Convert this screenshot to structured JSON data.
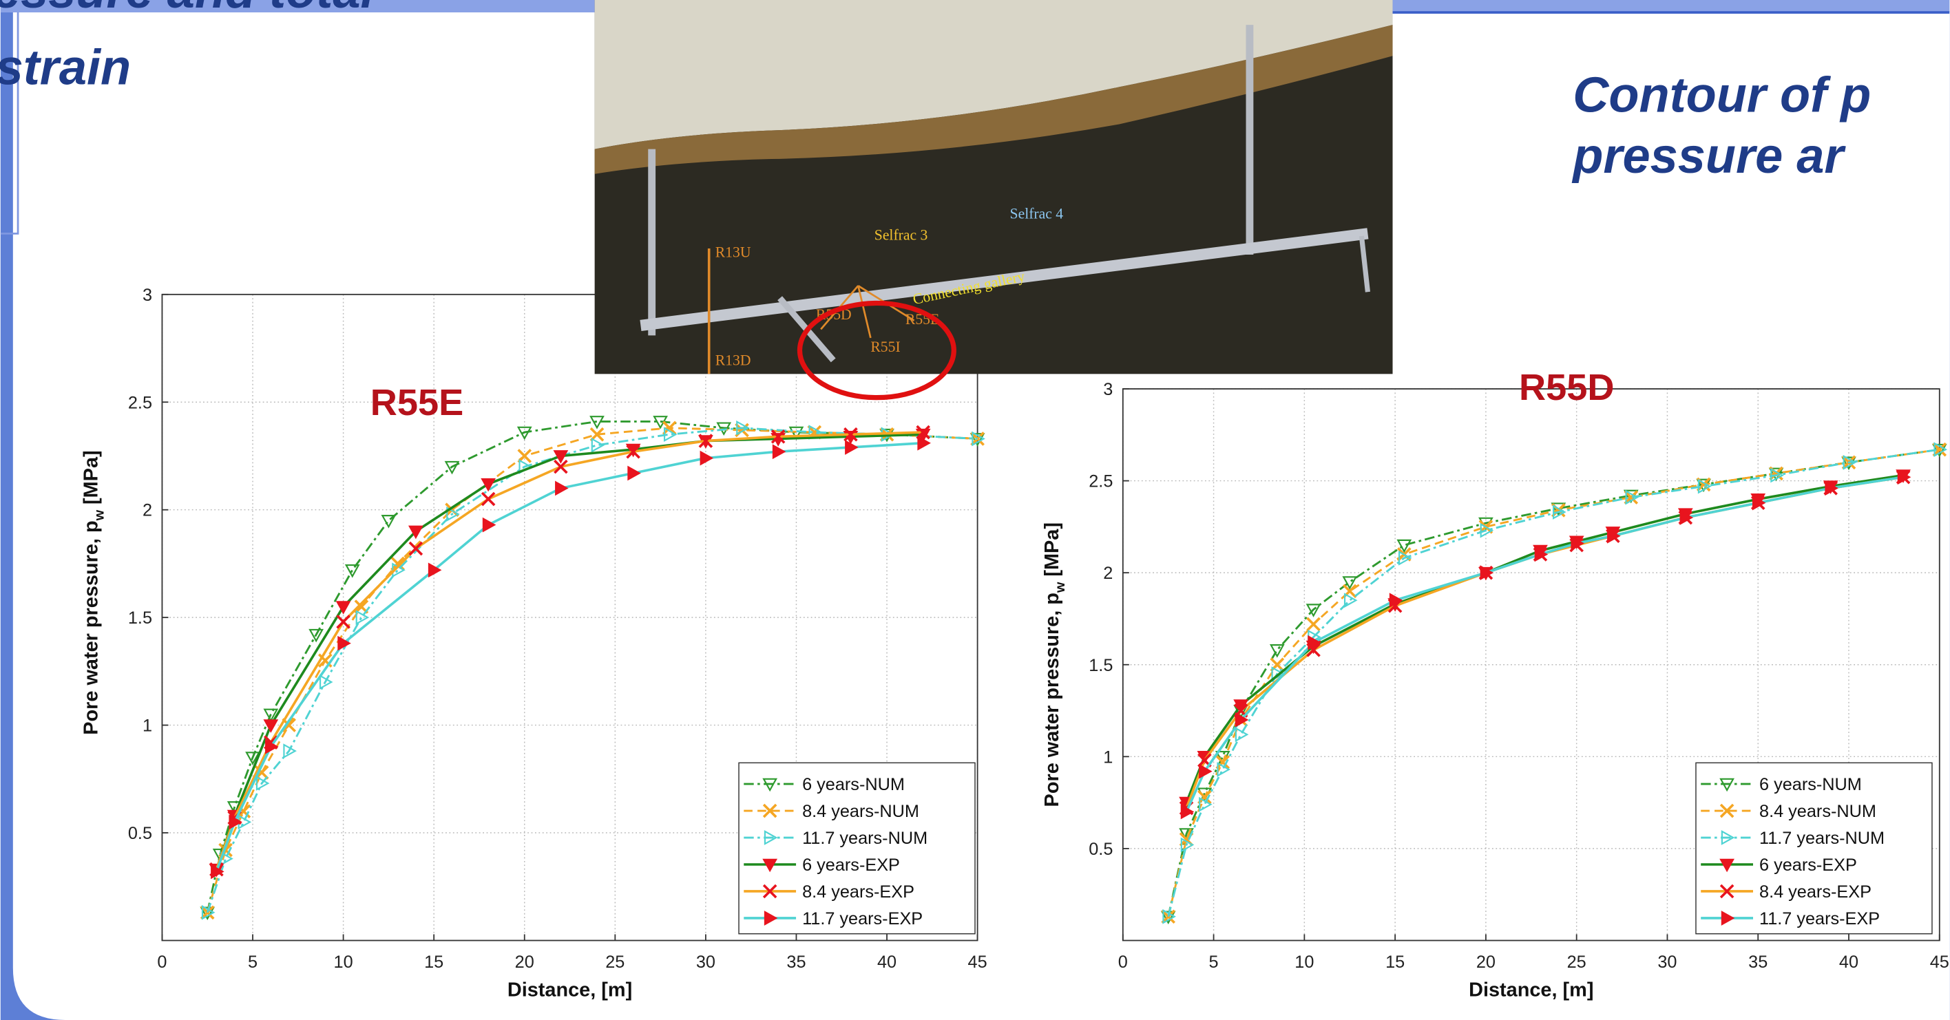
{
  "slide": {
    "left_title": [
      "essure and total",
      "strain"
    ],
    "right_title": [
      "Contour of p",
      "pressure ar"
    ]
  },
  "photo": {
    "labels": [
      "Selfrac 3",
      "Selfrac 4",
      "Connecting gallery",
      "R13U",
      "R13D",
      "R55D",
      "R55E",
      "R55I"
    ]
  },
  "chart_data": [
    {
      "type": "line",
      "title": "R55E",
      "xlabel": "Distance, [m]",
      "ylabel": [
        "Pore water pressure, p",
        "w",
        " [MPa]"
      ],
      "xlim": [
        0,
        45
      ],
      "ylim": [
        0,
        3
      ],
      "xticks": [
        0,
        5,
        10,
        15,
        20,
        25,
        30,
        35,
        40,
        45
      ],
      "yticks": [
        0.5,
        1,
        1.5,
        2,
        2.5,
        3
      ],
      "grid": true,
      "legend": "lower right",
      "series": [
        {
          "name": "6 years-NUM",
          "color": "#2e9a2e",
          "linestyle": "dashdot",
          "marker": "v",
          "marker_color": "#2e9a2e",
          "marker_filled": false,
          "x": [
            2.5,
            3.2,
            4,
            5,
            6,
            8.5,
            10.5,
            12.5,
            16,
            20,
            24,
            27.5,
            31,
            35,
            40,
            45
          ],
          "values": [
            0.13,
            0.4,
            0.62,
            0.85,
            1.05,
            1.42,
            1.72,
            1.95,
            2.2,
            2.36,
            2.41,
            2.41,
            2.38,
            2.36,
            2.35,
            2.33
          ]
        },
        {
          "name": "8.4 years-NUM",
          "color": "#f5a623",
          "linestyle": "dash",
          "marker": "x",
          "marker_color": "#f5a623",
          "marker_filled": false,
          "x": [
            2.5,
            3.5,
            4.5,
            5.5,
            7,
            9,
            11,
            13,
            16,
            20,
            24,
            28,
            32,
            36,
            40,
            45
          ],
          "values": [
            0.13,
            0.42,
            0.6,
            0.78,
            1.0,
            1.3,
            1.55,
            1.75,
            2.0,
            2.25,
            2.35,
            2.38,
            2.37,
            2.36,
            2.35,
            2.33
          ]
        },
        {
          "name": "11.7 years-NUM",
          "color": "#4fd3d3",
          "linestyle": "dashdot",
          "marker": ">",
          "marker_color": "#4fd3d3",
          "marker_filled": false,
          "x": [
            2.5,
            3.5,
            4.5,
            5.5,
            7,
            9,
            11,
            13,
            16,
            20,
            24,
            28,
            32,
            36,
            40,
            45
          ],
          "values": [
            0.13,
            0.38,
            0.55,
            0.73,
            0.88,
            1.2,
            1.5,
            1.72,
            1.98,
            2.2,
            2.3,
            2.35,
            2.38,
            2.36,
            2.35,
            2.33
          ]
        },
        {
          "name": "6 years-EXP",
          "color": "#1e8a1e",
          "linestyle": "solid",
          "marker": "v",
          "marker_color": "#e8141e",
          "marker_filled": true,
          "x": [
            3,
            4,
            6,
            10,
            14,
            18,
            22,
            26,
            30,
            34,
            38,
            42
          ],
          "values": [
            0.33,
            0.58,
            1.0,
            1.55,
            1.9,
            2.12,
            2.25,
            2.28,
            2.32,
            2.33,
            2.34,
            2.35
          ]
        },
        {
          "name": "8.4 years-EXP",
          "color": "#f5a623",
          "linestyle": "solid",
          "marker": "x",
          "marker_color": "#e8141e",
          "marker_filled": true,
          "x": [
            3,
            4,
            6,
            10,
            14,
            18,
            22,
            26,
            30,
            34,
            38,
            42
          ],
          "values": [
            0.33,
            0.57,
            0.92,
            1.48,
            1.82,
            2.05,
            2.2,
            2.27,
            2.32,
            2.34,
            2.35,
            2.36
          ]
        },
        {
          "name": "11.7 years-EXP",
          "color": "#4fd3d3",
          "linestyle": "solid",
          "marker": ">",
          "marker_color": "#e8141e",
          "marker_filled": true,
          "x": [
            3,
            4,
            6,
            10,
            15,
            18,
            22,
            26,
            30,
            34,
            38,
            42
          ],
          "values": [
            0.32,
            0.55,
            0.9,
            1.38,
            1.72,
            1.93,
            2.1,
            2.17,
            2.24,
            2.27,
            2.29,
            2.31
          ]
        }
      ]
    },
    {
      "type": "line",
      "title": "R55D",
      "xlabel": "Distance, [m]",
      "ylabel": [
        "Pore water pressure, p",
        "w",
        " [MPa]"
      ],
      "xlim": [
        0,
        45
      ],
      "ylim": [
        0,
        3
      ],
      "xticks": [
        0,
        5,
        10,
        15,
        20,
        25,
        30,
        35,
        40,
        45
      ],
      "yticks": [
        0.5,
        1,
        1.5,
        2,
        2.5,
        3
      ],
      "grid": true,
      "legend": "lower right",
      "series": [
        {
          "name": "6 years-NUM",
          "color": "#2e9a2e",
          "linestyle": "dashdot",
          "marker": "v",
          "marker_color": "#2e9a2e",
          "marker_filled": false,
          "x": [
            2.5,
            3.5,
            4.5,
            5.5,
            6.5,
            8.5,
            10.5,
            12.5,
            15.5,
            20,
            24,
            28,
            32,
            36,
            40,
            45
          ],
          "values": [
            0.13,
            0.58,
            0.8,
            1.0,
            1.25,
            1.58,
            1.8,
            1.95,
            2.15,
            2.27,
            2.35,
            2.42,
            2.48,
            2.54,
            2.6,
            2.67
          ]
        },
        {
          "name": "8.4 years-NUM",
          "color": "#f5a623",
          "linestyle": "dash",
          "marker": "x",
          "marker_color": "#f5a623",
          "marker_filled": false,
          "x": [
            2.5,
            3.5,
            4.5,
            5.5,
            6.5,
            8.5,
            10.5,
            12.5,
            15.5,
            20,
            24,
            28,
            32,
            36,
            40,
            45
          ],
          "values": [
            0.13,
            0.55,
            0.78,
            0.97,
            1.2,
            1.5,
            1.72,
            1.9,
            2.1,
            2.25,
            2.34,
            2.41,
            2.48,
            2.54,
            2.6,
            2.67
          ]
        },
        {
          "name": "11.7 years-NUM",
          "color": "#4fd3d3",
          "linestyle": "dashdot",
          "marker": ">",
          "marker_color": "#4fd3d3",
          "marker_filled": false,
          "x": [
            2.5,
            3.5,
            4.5,
            5.5,
            6.5,
            8.5,
            10.5,
            12.5,
            15.5,
            20,
            24,
            28,
            32,
            36,
            40,
            45
          ],
          "values": [
            0.13,
            0.52,
            0.74,
            0.93,
            1.12,
            1.45,
            1.65,
            1.85,
            2.08,
            2.23,
            2.33,
            2.41,
            2.47,
            2.53,
            2.6,
            2.67
          ]
        },
        {
          "name": "6 years-EXP",
          "color": "#1e8a1e",
          "linestyle": "solid",
          "marker": "v",
          "marker_color": "#e8141e",
          "marker_filled": true,
          "x": [
            3.5,
            4.5,
            6.5,
            10.5,
            15,
            20,
            23,
            25,
            27,
            31,
            35,
            39,
            43
          ],
          "values": [
            0.75,
            1.0,
            1.28,
            1.6,
            1.83,
            2.0,
            2.12,
            2.17,
            2.22,
            2.32,
            2.4,
            2.47,
            2.53
          ]
        },
        {
          "name": "8.4 years-EXP",
          "color": "#f5a623",
          "linestyle": "solid",
          "marker": "x",
          "marker_color": "#e8141e",
          "marker_filled": true,
          "x": [
            3.5,
            4.5,
            6.5,
            10.5,
            15,
            20,
            23,
            25,
            27,
            31,
            35,
            39,
            43
          ],
          "values": [
            0.72,
            0.98,
            1.25,
            1.58,
            1.82,
            2.0,
            2.1,
            2.15,
            2.2,
            2.3,
            2.38,
            2.46,
            2.52
          ]
        },
        {
          "name": "11.7 years-EXP",
          "color": "#4fd3d3",
          "linestyle": "solid",
          "marker": ">",
          "marker_color": "#e8141e",
          "marker_filled": true,
          "x": [
            3.5,
            4.5,
            6.5,
            10.5,
            15,
            20,
            23,
            25,
            27,
            31,
            35,
            39,
            43
          ],
          "values": [
            0.7,
            0.92,
            1.2,
            1.62,
            1.85,
            2.0,
            2.1,
            2.16,
            2.2,
            2.3,
            2.38,
            2.46,
            2.52
          ]
        }
      ]
    }
  ]
}
